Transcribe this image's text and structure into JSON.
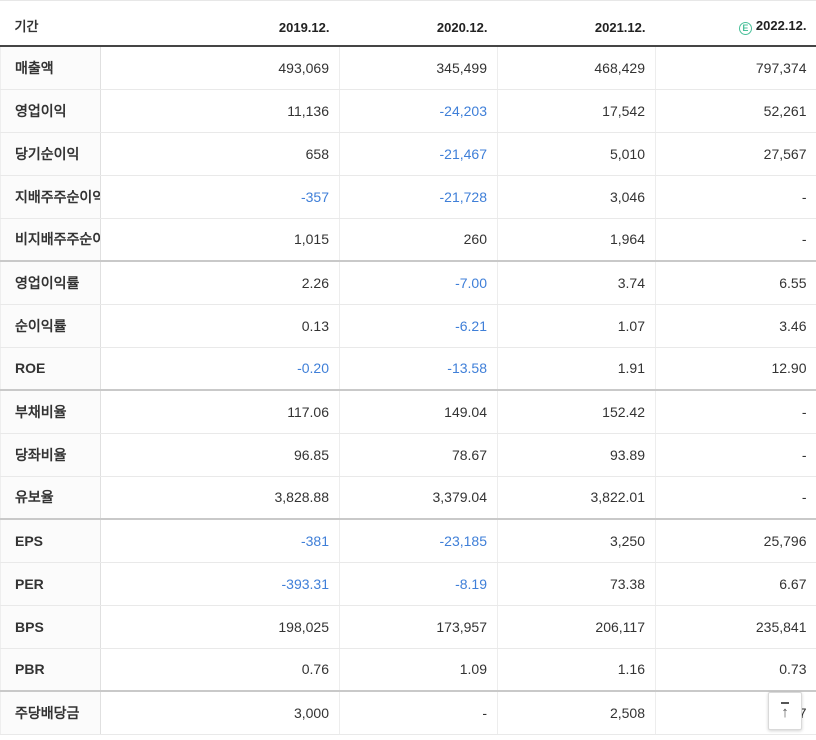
{
  "table": {
    "corner_label": "기간",
    "columns": [
      "2019.12.",
      "2020.12.",
      "2021.12.",
      "2022.12."
    ],
    "estimate_badge": "E",
    "rows": [
      {
        "label": "매출액",
        "values": [
          "493,069",
          "345,499",
          "468,429",
          "797,374"
        ],
        "group_end": false
      },
      {
        "label": "영업이익",
        "values": [
          "11,136",
          "-24,203",
          "17,542",
          "52,261"
        ],
        "group_end": false
      },
      {
        "label": "당기순이익",
        "values": [
          "658",
          "-21,467",
          "5,010",
          "27,567"
        ],
        "group_end": false
      },
      {
        "label": "지배주주순이익",
        "values": [
          "-357",
          "-21,728",
          "3,046",
          "-"
        ],
        "group_end": false
      },
      {
        "label": "비지배주주순이익",
        "values": [
          "1,015",
          "260",
          "1,964",
          "-"
        ],
        "group_end": true
      },
      {
        "label": "영업이익률",
        "values": [
          "2.26",
          "-7.00",
          "3.74",
          "6.55"
        ],
        "group_end": false
      },
      {
        "label": "순이익률",
        "values": [
          "0.13",
          "-6.21",
          "1.07",
          "3.46"
        ],
        "group_end": false
      },
      {
        "label": "ROE",
        "values": [
          "-0.20",
          "-13.58",
          "1.91",
          "12.90"
        ],
        "group_end": true
      },
      {
        "label": "부채비율",
        "values": [
          "117.06",
          "149.04",
          "152.42",
          "-"
        ],
        "group_end": false
      },
      {
        "label": "당좌비율",
        "values": [
          "96.85",
          "78.67",
          "93.89",
          "-"
        ],
        "group_end": false
      },
      {
        "label": "유보율",
        "values": [
          "3,828.88",
          "3,379.04",
          "3,822.01",
          "-"
        ],
        "group_end": true
      },
      {
        "label": "EPS",
        "values": [
          "-381",
          "-23,185",
          "3,250",
          "25,796"
        ],
        "group_end": false
      },
      {
        "label": "PER",
        "values": [
          "-393.31",
          "-8.19",
          "73.38",
          "6.67"
        ],
        "group_end": false
      },
      {
        "label": "BPS",
        "values": [
          "198,025",
          "173,957",
          "206,117",
          "235,841"
        ],
        "group_end": false
      },
      {
        "label": "PBR",
        "values": [
          "0.76",
          "1.09",
          "1.16",
          "0.73"
        ],
        "group_end": true
      },
      {
        "label": "주당배당금",
        "values": [
          "3,000",
          "-",
          "2,508",
          "7"
        ],
        "group_end": false
      }
    ]
  },
  "colors": {
    "negative_value": "#3f7fd8",
    "estimate_badge_green": "#4bc09a"
  },
  "scroll_top": {
    "icon": "↑"
  }
}
